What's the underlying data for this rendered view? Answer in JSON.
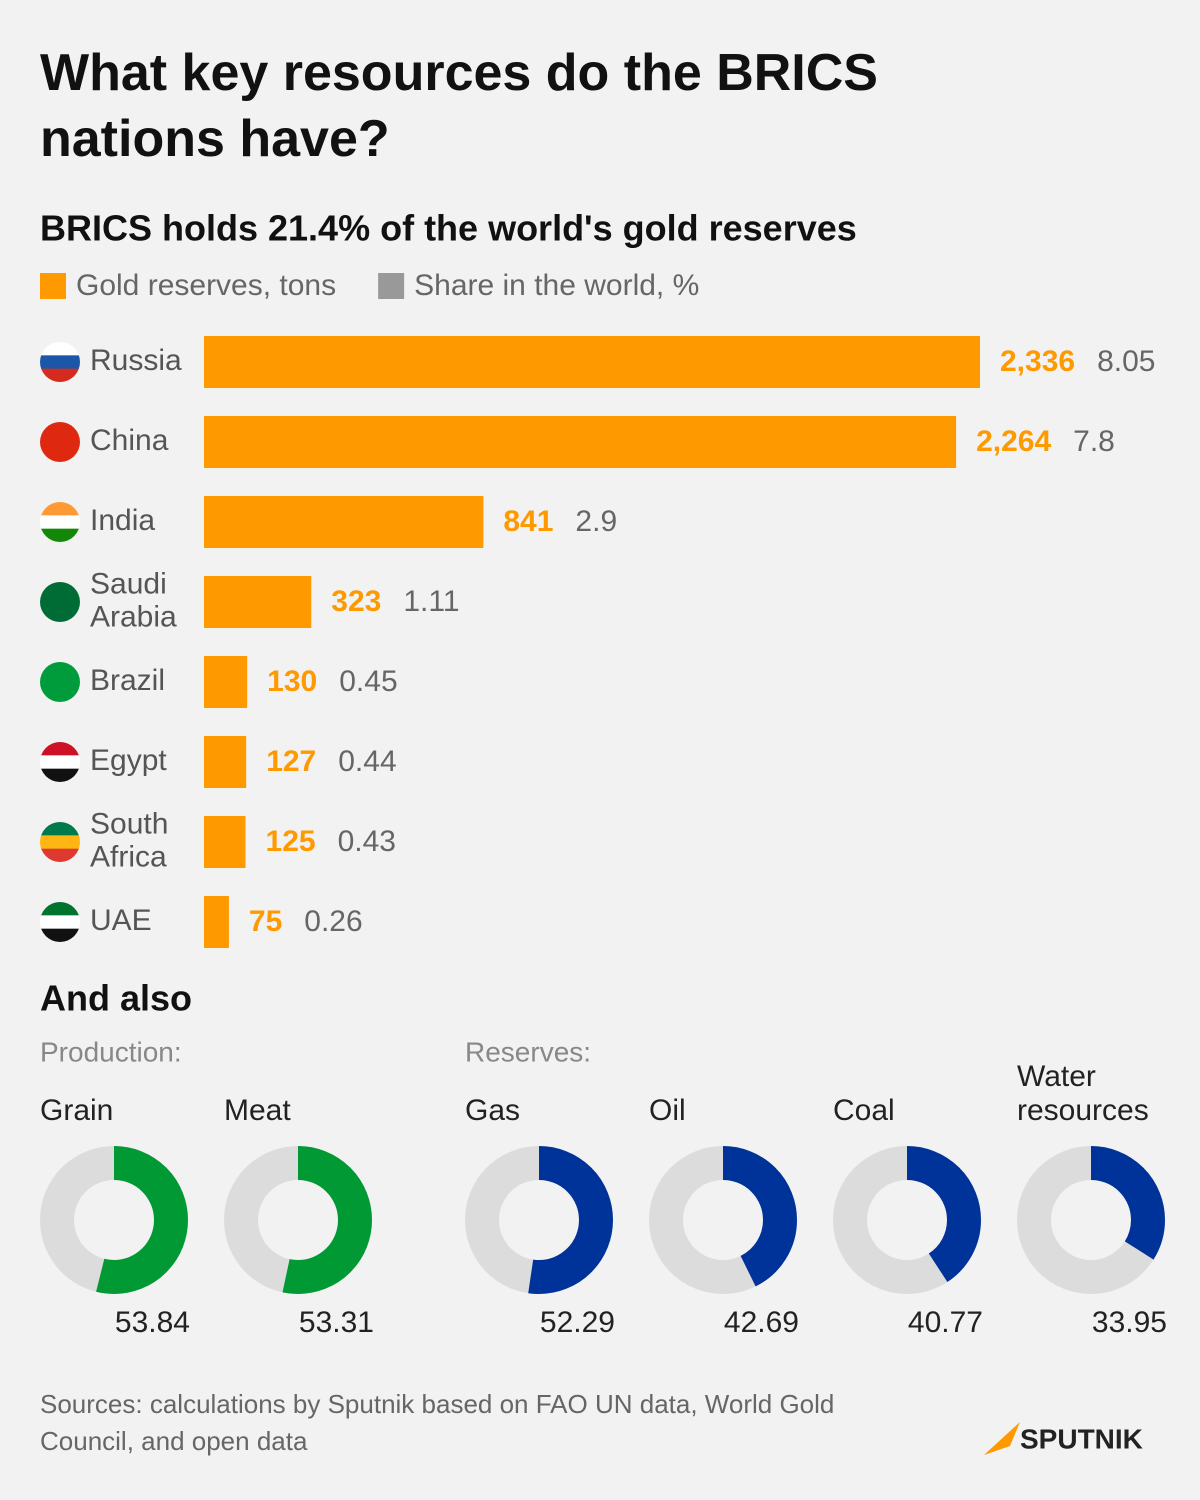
{
  "header": {
    "title": "What key resources do the BRICS nations have?"
  },
  "chart_data": [
    {
      "type": "bar",
      "orientation": "horizontal",
      "title": "BRICS holds 21.4% of the world's gold reserves",
      "categories": [
        "Russia",
        "China",
        "India",
        "Saudi Arabia",
        "Brazil",
        "Egypt",
        "South Africa",
        "UAE"
      ],
      "series": [
        {
          "name": "Gold reserves, tons",
          "color": "#ff9900",
          "values": [
            2336,
            2264,
            841,
            323,
            130,
            127,
            125,
            75
          ],
          "value_labels": [
            "2,336",
            "2,264",
            "841",
            "323",
            "130",
            "127",
            "125",
            "75"
          ]
        },
        {
          "name": "Share in the world, %",
          "color": "#999999",
          "values": [
            8.05,
            7.8,
            2.9,
            1.11,
            0.45,
            0.44,
            0.43,
            0.26
          ]
        }
      ]
    },
    {
      "type": "donut",
      "title": "And also",
      "groups": [
        {
          "label": "Production:",
          "color": "#009933",
          "items": [
            {
              "name": "Grain",
              "value": 53.84
            },
            {
              "name": "Meat",
              "value": 53.31
            }
          ]
        },
        {
          "label": "Reserves:",
          "color": "#003399",
          "items": [
            {
              "name": "Gas",
              "value": 52.29
            },
            {
              "name": "Oil",
              "value": 42.69
            },
            {
              "name": "Coal",
              "value": 40.77
            },
            {
              "name": "Water resources",
              "value": 33.95
            }
          ]
        }
      ]
    }
  ],
  "footer": {
    "source": "Sources: calculations by Sputnik based on FAO UN data, World Gold Council, and open data",
    "logo": "SPUTNIK"
  }
}
